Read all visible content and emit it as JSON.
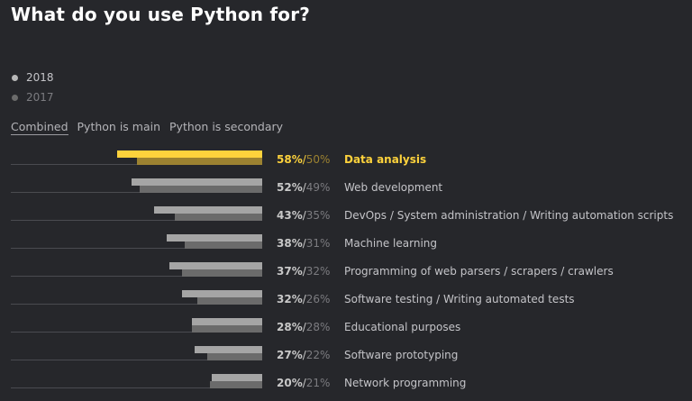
{
  "header": {
    "title": "What do you use Python for?"
  },
  "legend": [
    {
      "label": "2018",
      "color": "#b8b8b8"
    },
    {
      "label": "2017",
      "color": "#6b6b6b"
    }
  ],
  "tabs": [
    {
      "label": "Combined",
      "active": true
    },
    {
      "label": "Python is main",
      "active": false
    },
    {
      "label": "Python is secondary",
      "active": false
    }
  ],
  "colors": {
    "background": "#26272b",
    "highlight_2018": "#fdd23c",
    "highlight_2017": "#9c8231",
    "bar_2018": "#a5a5a5",
    "bar_2017": "#6b6b6b",
    "text_2018": "#c8c8c8",
    "text_2017": "#7c7c80",
    "label_text": "#c4c4c8"
  },
  "chart_data": {
    "type": "bar",
    "orientation": "horizontal",
    "title": "What do you use Python for?",
    "categories": [
      "Data analysis",
      "Web development",
      "DevOps / System administration / Writing automation scripts",
      "Machine learning",
      "Programming of web parsers / scrapers / crawlers",
      "Software testing / Writing automated tests",
      "Educational purposes",
      "Software prototyping",
      "Network programming"
    ],
    "series": [
      {
        "name": "2018",
        "values": [
          58,
          52,
          43,
          38,
          37,
          32,
          28,
          27,
          20
        ]
      },
      {
        "name": "2017",
        "values": [
          50,
          49,
          35,
          31,
          32,
          26,
          28,
          22,
          21
        ]
      }
    ],
    "value_labels": [
      [
        "58%",
        "50%"
      ],
      [
        "52%",
        "49%"
      ],
      [
        "43%",
        "35%"
      ],
      [
        "38%",
        "31%"
      ],
      [
        "37%",
        "32%"
      ],
      [
        "32%",
        "26%"
      ],
      [
        "28%",
        "28%"
      ],
      [
        "27%",
        "22%"
      ],
      [
        "20%",
        "21%"
      ]
    ],
    "highlighted_category": "Data analysis",
    "legend_position": "top-left",
    "grid": false,
    "xlim": [
      0,
      100
    ],
    "unit": "%"
  },
  "rows": [
    {
      "label": "Data analysis",
      "v2018": "58%",
      "v2017": "50%",
      "sep": "/",
      "highlight": true
    },
    {
      "label": "Web development",
      "v2018": "52%",
      "v2017": "49%",
      "sep": "/",
      "highlight": false
    },
    {
      "label": "DevOps / System administration / Writing automation scripts",
      "v2018": "43%",
      "v2017": "35%",
      "sep": "/",
      "highlight": false
    },
    {
      "label": "Machine learning",
      "v2018": "38%",
      "v2017": "31%",
      "sep": "/",
      "highlight": false
    },
    {
      "label": "Programming of web parsers / scrapers / crawlers",
      "v2018": "37%",
      "v2017": "32%",
      "sep": "/",
      "highlight": false
    },
    {
      "label": "Software testing / Writing automated tests",
      "v2018": "32%",
      "v2017": "26%",
      "sep": "/",
      "highlight": false
    },
    {
      "label": "Educational purposes",
      "v2018": "28%",
      "v2017": "28%",
      "sep": "/",
      "highlight": false
    },
    {
      "label": "Software prototyping",
      "v2018": "27%",
      "v2017": "22%",
      "sep": "/",
      "highlight": false
    },
    {
      "label": "Network programming",
      "v2018": "20%",
      "v2017": "21%",
      "sep": "/",
      "highlight": false
    }
  ]
}
